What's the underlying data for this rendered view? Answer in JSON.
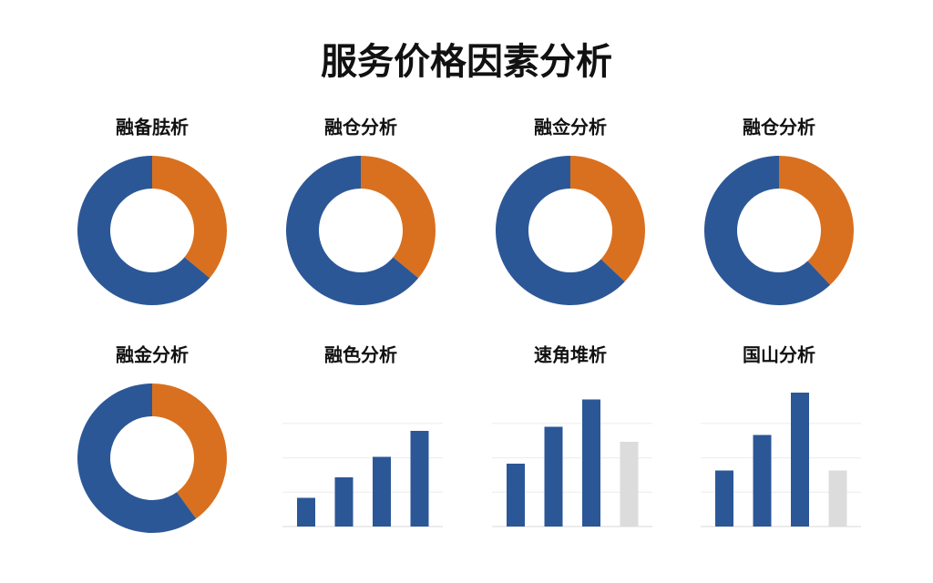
{
  "title": "服务价格因素分析",
  "chart_data": [
    {
      "type": "donut",
      "title": "融备胠析",
      "categories": [
        null,
        null
      ],
      "values": [
        36,
        64
      ],
      "colors": [
        "#d9701f",
        "#2c5797"
      ]
    },
    {
      "type": "donut",
      "title": "融仓分析",
      "categories": [
        null,
        null
      ],
      "values": [
        36,
        64
      ],
      "colors": [
        "#d9701f",
        "#2c5797"
      ]
    },
    {
      "type": "donut",
      "title": "融佥分析",
      "categories": [
        null,
        null
      ],
      "values": [
        37,
        63
      ],
      "colors": [
        "#d9701f",
        "#2c5797"
      ]
    },
    {
      "type": "donut",
      "title": "融仓分析",
      "categories": [
        null,
        null
      ],
      "values": [
        38,
        62
      ],
      "colors": [
        "#d9701f",
        "#2c5797"
      ]
    },
    {
      "type": "donut",
      "title": "融金分析",
      "categories": [
        null,
        null
      ],
      "values": [
        40,
        60
      ],
      "colors": [
        "#d9701f",
        "#2c5797"
      ]
    },
    {
      "type": "bar",
      "title": "融色分析",
      "categories": [
        null,
        null,
        null,
        null
      ],
      "values": [
        21,
        36,
        51,
        70
      ],
      "colors": [
        "#2c5797",
        "#2c5797",
        "#2c5797",
        "#2c5797"
      ],
      "ylim": [
        0,
        100
      ],
      "grid": true
    },
    {
      "type": "bar",
      "title": "速角堆析",
      "categories": [
        null,
        null,
        null,
        null
      ],
      "values": [
        46,
        73,
        93,
        62
      ],
      "colors": [
        "#2c5797",
        "#2c5797",
        "#2c5797",
        "#dcdcdc"
      ],
      "ylim": [
        0,
        100
      ],
      "grid": true
    },
    {
      "type": "bar",
      "title": "国山分析",
      "categories": [
        null,
        null,
        null,
        null
      ],
      "values": [
        41,
        67,
        98,
        41
      ],
      "colors": [
        "#2c5797",
        "#2c5797",
        "#2c5797",
        "#dcdcdc"
      ],
      "ylim": [
        0,
        100
      ],
      "grid": true
    }
  ]
}
